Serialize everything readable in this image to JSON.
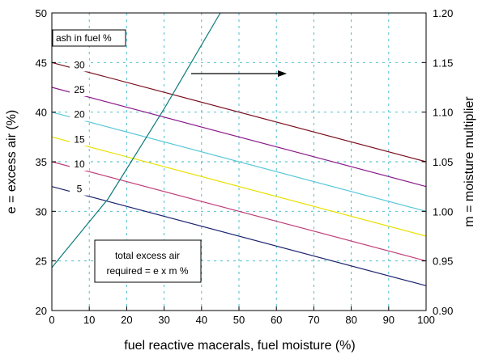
{
  "chart_data": {
    "type": "line",
    "xlabel": "fuel reactive macerals, fuel moisture (%)",
    "ylabel_left": "e = excess air (%)",
    "ylabel_right": "m = moisture multiplier",
    "xlim": [
      0,
      100
    ],
    "ylim_left": [
      20,
      50
    ],
    "ylim_right": [
      0.9,
      1.2
    ],
    "x_ticks": [
      "0",
      "10",
      "20",
      "30",
      "40",
      "50",
      "60",
      "70",
      "80",
      "90",
      "100"
    ],
    "y_left_ticks": [
      "20",
      "25",
      "30",
      "35",
      "40",
      "45",
      "50"
    ],
    "y_right_ticks": [
      "0.90",
      "0.95",
      "1.00",
      "1.05",
      "1.10",
      "1.15",
      "1.20"
    ],
    "grid": true,
    "legend_title": "ash in fuel %",
    "series": [
      {
        "name": "30",
        "color": "#7a1020",
        "x": [
          0,
          100
        ],
        "y": [
          45.0,
          35.0
        ]
      },
      {
        "name": "25",
        "color": "#8a1d8a",
        "x": [
          0,
          100
        ],
        "y": [
          42.5,
          32.5
        ]
      },
      {
        "name": "20",
        "color": "#58c8d8",
        "x": [
          0,
          100
        ],
        "y": [
          40.0,
          30.0
        ]
      },
      {
        "name": "15",
        "color": "#e8e000",
        "x": [
          0,
          100
        ],
        "y": [
          37.5,
          27.5
        ]
      },
      {
        "name": "10",
        "color": "#c0407a",
        "x": [
          0,
          100
        ],
        "y": [
          35.0,
          25.0
        ]
      },
      {
        "name": "5",
        "color": "#1c2470",
        "x": [
          0,
          100
        ],
        "y": [
          32.5,
          22.5
        ]
      }
    ],
    "moisture_curve": {
      "color": "#0e7a7a",
      "axis": "right",
      "x": [
        0,
        15,
        30,
        45
      ],
      "y": [
        0.9433,
        1.0125,
        1.1033,
        1.2
      ]
    },
    "annotations": {
      "arrow_direction": "right",
      "note_line1": "total excess air",
      "note_line2": "required = e x m %"
    }
  }
}
